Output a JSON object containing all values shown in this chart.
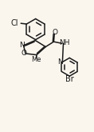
{
  "bg_color": "#faf6ee",
  "bond_color": "#1a1a1a",
  "atom_color": "#1a1a1a",
  "line_width": 1.1,
  "font_size": 6.5,
  "xlim": [
    -0.35,
    1.05
  ],
  "ylim": [
    -0.58,
    0.98
  ]
}
